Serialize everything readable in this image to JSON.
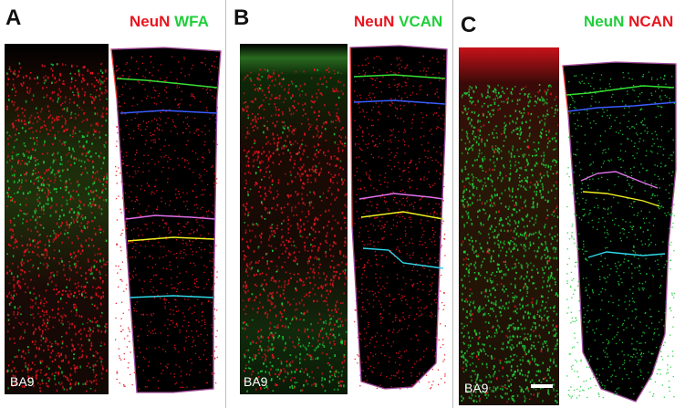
{
  "colors": {
    "neun_red": "#e8141e",
    "green": "#1fcf3a",
    "layer_boundaries": [
      "#ff4040",
      "#35e035",
      "#3a5cff",
      "#e070e8",
      "#f0f020",
      "#30d8e8"
    ]
  },
  "panels": [
    {
      "letter": "A",
      "stain_first": "NeuN",
      "stain_second": "WFA",
      "first_color": "#e8141e",
      "second_color": "#1fcf3a",
      "region_label": "BA9"
    },
    {
      "letter": "B",
      "stain_first": "NeuN",
      "stain_second": "VCAN",
      "first_color": "#e8141e",
      "second_color": "#1fcf3a",
      "region_label": "BA9"
    },
    {
      "letter": "C",
      "stain_first": "NeuN",
      "stain_second": "NCAN",
      "first_color": "#1fcf3a",
      "second_color": "#e8141e",
      "region_label": "BA9"
    }
  ]
}
